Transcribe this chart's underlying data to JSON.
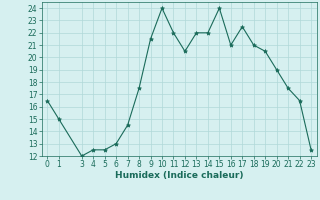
{
  "x": [
    0,
    1,
    3,
    4,
    5,
    6,
    7,
    8,
    9,
    10,
    11,
    12,
    13,
    14,
    15,
    16,
    17,
    18,
    19,
    20,
    21,
    22,
    23
  ],
  "y": [
    16.5,
    15.0,
    12.0,
    12.5,
    12.5,
    13.0,
    14.5,
    17.5,
    21.5,
    24.0,
    22.0,
    20.5,
    22.0,
    22.0,
    24.0,
    21.0,
    22.5,
    21.0,
    20.5,
    19.0,
    17.5,
    16.5,
    12.5
  ],
  "line_color": "#1a6b5a",
  "marker": "*",
  "marker_size": 3,
  "bg_color": "#d6f0f0",
  "grid_color": "#b0d8d8",
  "xlabel": "Humidex (Indice chaleur)",
  "xlim": [
    -0.5,
    23.5
  ],
  "ylim": [
    12,
    24.5
  ],
  "yticks": [
    12,
    13,
    14,
    15,
    16,
    17,
    18,
    19,
    20,
    21,
    22,
    23,
    24
  ],
  "xticks": [
    0,
    1,
    3,
    4,
    5,
    6,
    7,
    8,
    9,
    10,
    11,
    12,
    13,
    14,
    15,
    16,
    17,
    18,
    19,
    20,
    21,
    22,
    23
  ],
  "tick_fontsize": 5.5,
  "xlabel_fontsize": 6.5
}
